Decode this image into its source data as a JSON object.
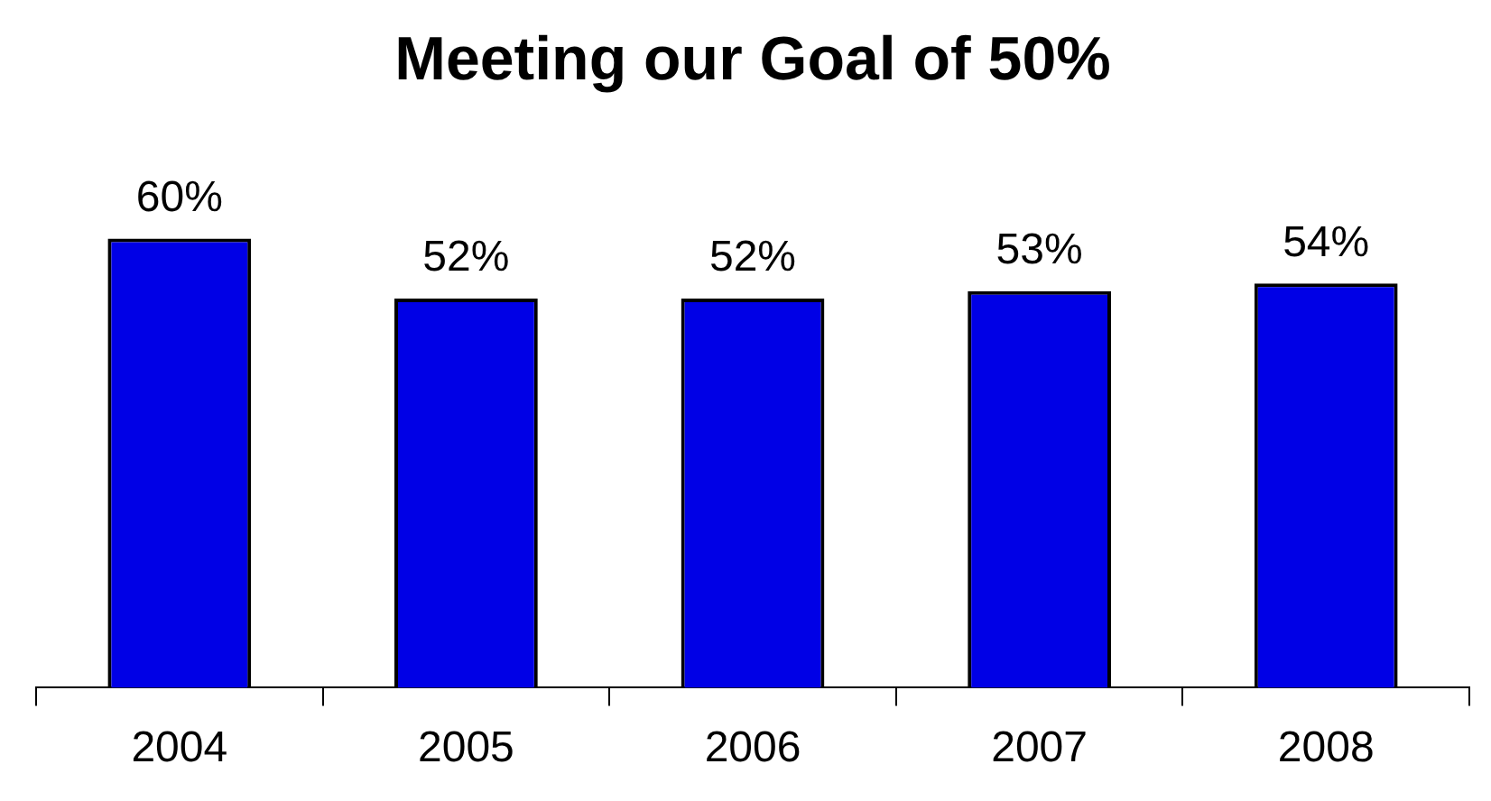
{
  "chart_data": {
    "type": "bar",
    "title": "Meeting our Goal of 50%",
    "categories": [
      "2004",
      "2005",
      "2006",
      "2007",
      "2008"
    ],
    "values": [
      60,
      52,
      52,
      53,
      54
    ],
    "value_labels": [
      "60%",
      "52%",
      "52%",
      "53%",
      "54%"
    ],
    "color": "#0000e6",
    "grid": false,
    "legend": false
  }
}
